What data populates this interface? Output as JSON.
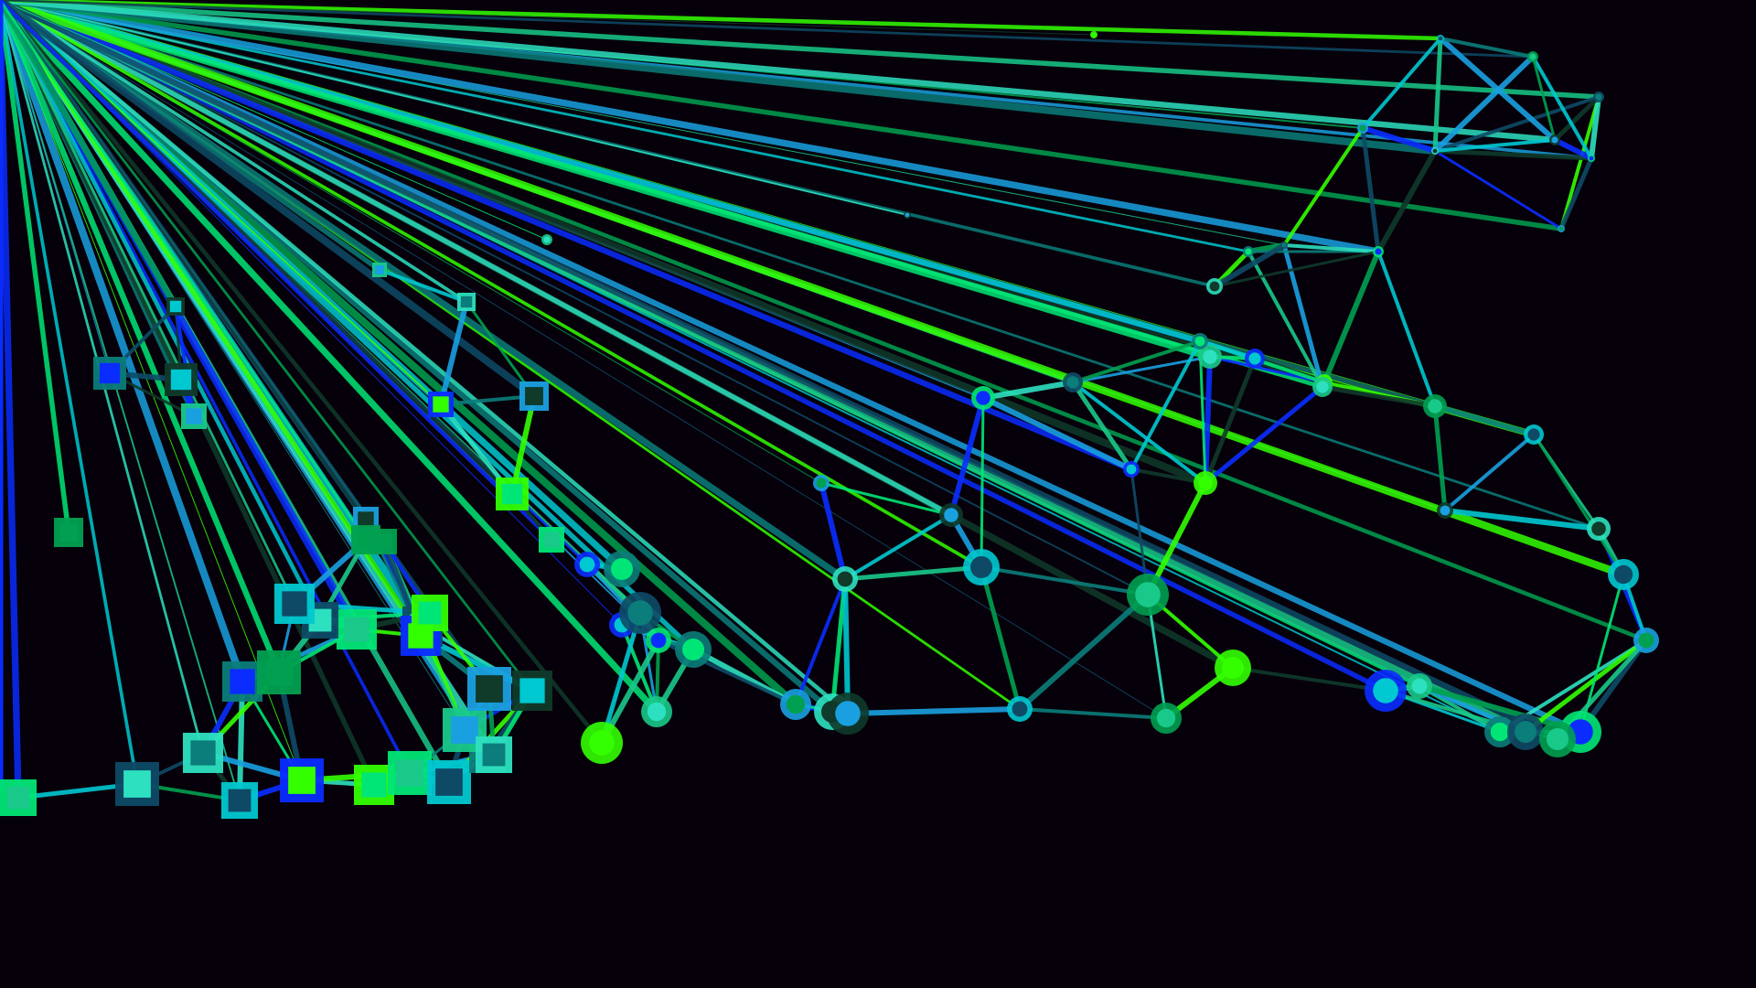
{
  "scene": {
    "background_color": "#06000a",
    "palette": [
      "#0a2cff",
      "#00e676",
      "#00c8d0",
      "#19c98a",
      "#1aa0e0",
      "#00a050",
      "#0b7d7a",
      "#2de0c0",
      "#33ff00",
      "#0e4a66",
      "#103a2a"
    ],
    "node_shapes": [
      "circle",
      "square"
    ]
  }
}
